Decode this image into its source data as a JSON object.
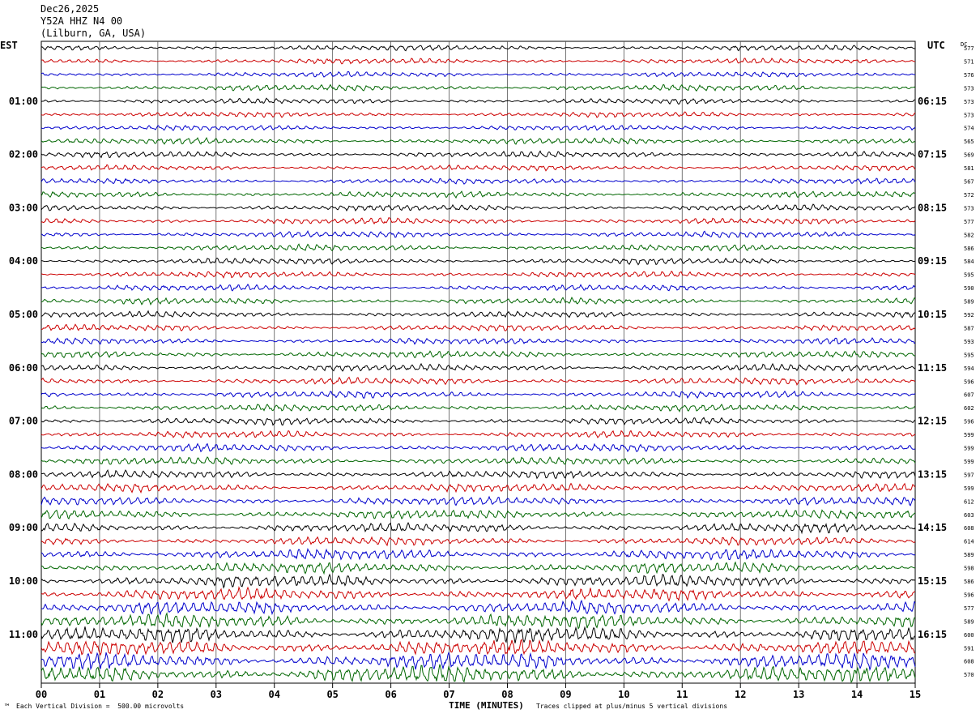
{
  "header": {
    "date": "Dec26,2025",
    "station": "Y52A HHZ N4 00",
    "location": "(Lilburn, GA, USA)"
  },
  "left_timezone": "EST",
  "right_timezone": "UTC",
  "dc_header": "DC",
  "footer": {
    "scale_note": "Each Vertical Division =  500.00 microvolts",
    "clip_note": "Traces clipped at plus/minus 5 vertical divisions",
    "corner_mark": "™"
  },
  "colors": {
    "trace_cycle": [
      "#000000",
      "#cc0000",
      "#0000cc",
      "#006600"
    ]
  },
  "chart_data": {
    "type": "line",
    "title": "Y52A HHZ N4 00",
    "xlabel": "TIME (MINUTES)",
    "ylabel": "",
    "x_ticks": [
      "00",
      "01",
      "02",
      "03",
      "04",
      "05",
      "06",
      "07",
      "08",
      "09",
      "10",
      "11",
      "12",
      "13",
      "14",
      "15"
    ],
    "xlim": [
      0,
      15
    ],
    "grid": true,
    "trace_count": 48,
    "left_hour_labels": [
      "01:00",
      "02:00",
      "03:00",
      "04:00",
      "05:00",
      "06:00",
      "07:00",
      "08:00",
      "09:00",
      "10:00",
      "11:00"
    ],
    "right_hour_labels": [
      "06:15",
      "07:15",
      "08:15",
      "09:15",
      "10:15",
      "11:15",
      "12:15",
      "13:15",
      "14:15",
      "15:15",
      "16:15"
    ],
    "dc_offsets": [
      "577",
      "571",
      "576",
      "573",
      "573",
      "573",
      "574",
      "565",
      "569",
      "581",
      "567",
      "572",
      "573",
      "577",
      "582",
      "586",
      "584",
      "595",
      "590",
      "589",
      "592",
      "587",
      "593",
      "595",
      "594",
      "596",
      "607",
      "602",
      "596",
      "599",
      "599",
      "599",
      "597",
      "599",
      "612",
      "603",
      "608",
      "614",
      "589",
      "598",
      "586",
      "596",
      "577",
      "589",
      "600",
      "591",
      "608",
      "570"
    ],
    "amplitude_per_trace": [
      0.35,
      0.35,
      0.35,
      0.4,
      0.35,
      0.35,
      0.35,
      0.4,
      0.4,
      0.35,
      0.35,
      0.4,
      0.4,
      0.4,
      0.4,
      0.4,
      0.4,
      0.4,
      0.4,
      0.4,
      0.4,
      0.4,
      0.4,
      0.45,
      0.45,
      0.45,
      0.45,
      0.45,
      0.45,
      0.45,
      0.5,
      0.5,
      0.5,
      0.55,
      0.55,
      0.6,
      0.6,
      0.55,
      0.7,
      0.7,
      0.8,
      0.8,
      0.85,
      0.9,
      1.0,
      1.0,
      1.05,
      1.1
    ]
  }
}
